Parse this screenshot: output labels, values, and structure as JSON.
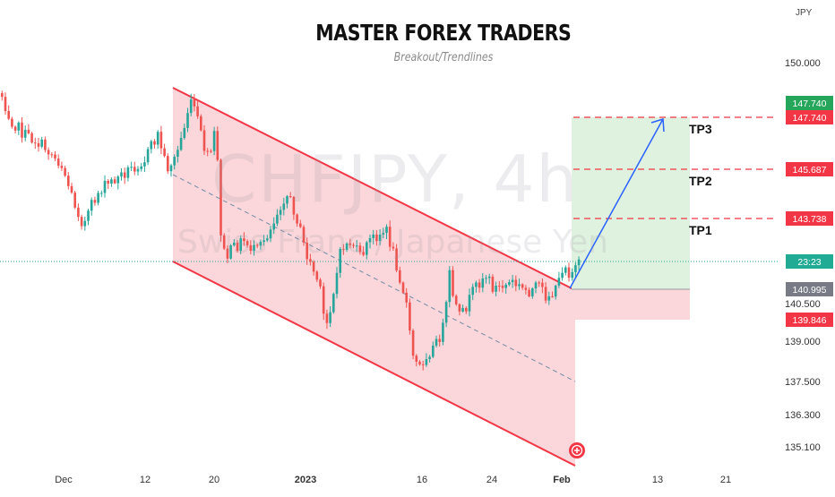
{
  "title": "MASTER FOREX TRADERS",
  "subtitle": "Breakout/Trendlines",
  "watermark": {
    "symbol_text": "CHFJPY, 4h",
    "description_text": "Swiss Franc / Japanese Yen"
  },
  "chart_data": {
    "type": "candlestick",
    "currency_label": "JPY",
    "price_axis": {
      "ticks": [
        "150.000",
        "140.500",
        "139.000",
        "137.500",
        "136.300",
        "135.100"
      ],
      "labels": [
        {
          "text": "147.740",
          "color": "#26a65b",
          "price": 147.74
        },
        {
          "text": "147.740",
          "color": "#f23645",
          "price": 147.74
        },
        {
          "text": "145.687",
          "color": "#f23645",
          "price": 145.687
        },
        {
          "text": "143.738",
          "color": "#f23645",
          "price": 143.738
        },
        {
          "text": "23:23",
          "color": "#22ab94",
          "price": 141.86
        },
        {
          "text": "140.995",
          "color": "#787b86",
          "price": 140.995
        },
        {
          "text": "139.846",
          "color": "#f23645",
          "price": 139.846
        }
      ]
    },
    "time_axis": [
      "Dec",
      "12",
      "20",
      "2023",
      "16",
      "24",
      "Feb",
      "13",
      "21"
    ],
    "levels": [
      {
        "name": "TP3",
        "price": 147.74
      },
      {
        "name": "TP2",
        "price": 145.687
      },
      {
        "name": "TP1",
        "price": 143.738
      }
    ],
    "entry_price": 140.995,
    "stop_price": 139.846,
    "last_price": 141.86,
    "colors": {
      "up": "#26a69a",
      "down": "#ef5350",
      "channel_line": "#f23645",
      "channel_fill": "#fbd6da",
      "target_fill": "#dff1df",
      "stop_fill": "#fbd6da",
      "arrow": "#2962ff"
    }
  }
}
